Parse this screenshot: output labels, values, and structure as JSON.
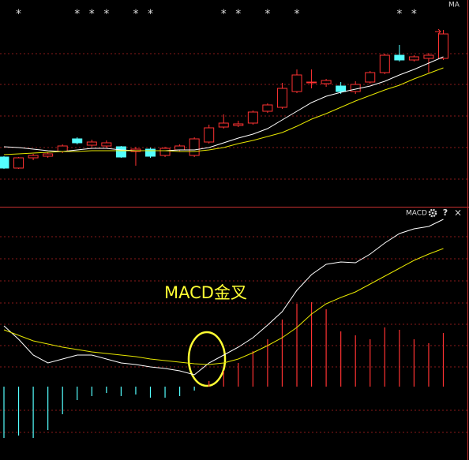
{
  "chart_data": [
    {
      "type": "candlestick",
      "title": "MA",
      "up_color": "#ff3232",
      "down_color": "#54ffff",
      "ylim": [
        0,
        262
      ],
      "open": [
        63,
        49,
        62,
        64,
        70,
        86,
        78,
        77,
        76,
        70,
        73,
        65,
        72,
        65,
        82,
        101,
        103,
        106,
        121,
        126,
        146,
        157,
        156,
        153,
        146,
        158,
        170,
        192,
        186,
        188,
        188
      ],
      "high": [
        64,
        63,
        67,
        69,
        79,
        88,
        85,
        84,
        77,
        76,
        75,
        76,
        79,
        88,
        104,
        117,
        109,
        122,
        131,
        157,
        174,
        174,
        162,
        158,
        159,
        172,
        194,
        205,
        192,
        195,
        224
      ],
      "low": [
        48,
        48,
        59,
        62,
        68,
        79,
        76,
        75,
        62,
        52,
        62,
        63,
        70,
        63,
        80,
        99,
        101,
        104,
        119,
        124,
        144,
        150,
        152,
        143,
        143,
        156,
        168,
        184,
        184,
        170,
        186
      ],
      "close": [
        49,
        62,
        65,
        67,
        77,
        81,
        82,
        81,
        63,
        73,
        64,
        74,
        77,
        86,
        100,
        106,
        105,
        120,
        129,
        150,
        167,
        158,
        160,
        146,
        155,
        170,
        192,
        186,
        190,
        192,
        219
      ],
      "lines": [
        {
          "color": "#ffffff",
          "values": [
            76,
            75,
            73,
            71,
            70,
            72,
            74,
            74,
            72,
            71,
            71,
            71,
            72,
            72,
            75,
            81,
            87,
            92,
            99,
            110,
            121,
            132,
            140,
            145,
            149,
            153,
            159,
            167,
            174,
            182,
            190
          ]
        },
        {
          "color": "#e6e600",
          "values": [
            66,
            67,
            68,
            69,
            70,
            70,
            71,
            71,
            71,
            71,
            71,
            71,
            70,
            70,
            72,
            75,
            80,
            84,
            89,
            94,
            102,
            111,
            118,
            126,
            134,
            141,
            148,
            154,
            162,
            169,
            176
          ]
        }
      ],
      "markers": [
        {
          "index": 1,
          "label": "*"
        },
        {
          "index": 5,
          "label": "*"
        },
        {
          "index": 6,
          "label": "*"
        },
        {
          "index": 7,
          "label": "*"
        },
        {
          "index": 9,
          "label": "*"
        },
        {
          "index": 10,
          "label": "*"
        },
        {
          "index": 15,
          "label": "*"
        },
        {
          "index": 16,
          "label": "*"
        },
        {
          "index": 18,
          "label": "*"
        },
        {
          "index": 20,
          "label": "*"
        },
        {
          "index": 27,
          "label": "*"
        },
        {
          "index": 28,
          "label": "*"
        }
      ]
    },
    {
      "type": "macd",
      "title": "MACD",
      "controls": [
        "?",
        "×"
      ],
      "annotation": "MACD金叉",
      "ylim": [
        -93,
        227
      ],
      "histogram": [
        -65,
        -62,
        -65,
        -55,
        -35,
        -17,
        -12,
        -8,
        -12,
        -10,
        -14,
        -14,
        -12,
        -5,
        7,
        20,
        30,
        45,
        60,
        85,
        105,
        107,
        98,
        70,
        65,
        60,
        75,
        72,
        60,
        55,
        68
      ],
      "pos_color": "#ff3232",
      "neg_color": "#54ffff",
      "lines": [
        {
          "color": "#ffffff",
          "values": [
            77,
            60,
            40,
            30,
            35,
            40,
            40,
            35,
            30,
            28,
            25,
            23,
            20,
            15,
            30,
            40,
            50,
            62,
            78,
            95,
            122,
            142,
            155,
            158,
            157,
            168,
            182,
            194,
            200,
            203,
            212
          ]
        },
        {
          "color": "#e6e600",
          "values": [
            72,
            65,
            58,
            54,
            50,
            47,
            44,
            42,
            40,
            38,
            35,
            33,
            31,
            29,
            28,
            30,
            35,
            43,
            52,
            62,
            75,
            92,
            105,
            113,
            120,
            130,
            140,
            150,
            160,
            168,
            175
          ]
        }
      ]
    }
  ]
}
